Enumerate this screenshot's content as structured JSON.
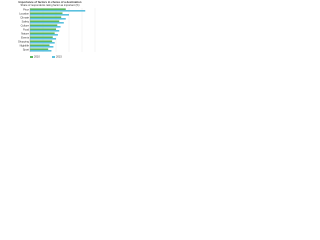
{
  "chart_data": {
    "type": "hbar",
    "title": "Importance of factors in choice of a destination",
    "subtitle": "Share of respondents rating factor as important (%)",
    "categories": [
      "Price",
      "Location",
      "Climate",
      "Safety",
      "Culture",
      "Food",
      "Nature",
      "Events",
      "Shopping",
      "Nightlife",
      "Sport"
    ],
    "series": [
      {
        "name": "2010",
        "color": "#5cb85c",
        "values": [
          55,
          50,
          48,
          45,
          42,
          40,
          38,
          35,
          34,
          30,
          28
        ]
      },
      {
        "name": "2015",
        "color": "#5bc0de",
        "values": [
          85,
          60,
          55,
          52,
          47,
          45,
          43,
          40,
          38,
          36,
          33
        ]
      }
    ],
    "xlim": [
      0,
      100
    ],
    "xticks": [
      0,
      20,
      40,
      60,
      80,
      100
    ],
    "grid": true
  }
}
